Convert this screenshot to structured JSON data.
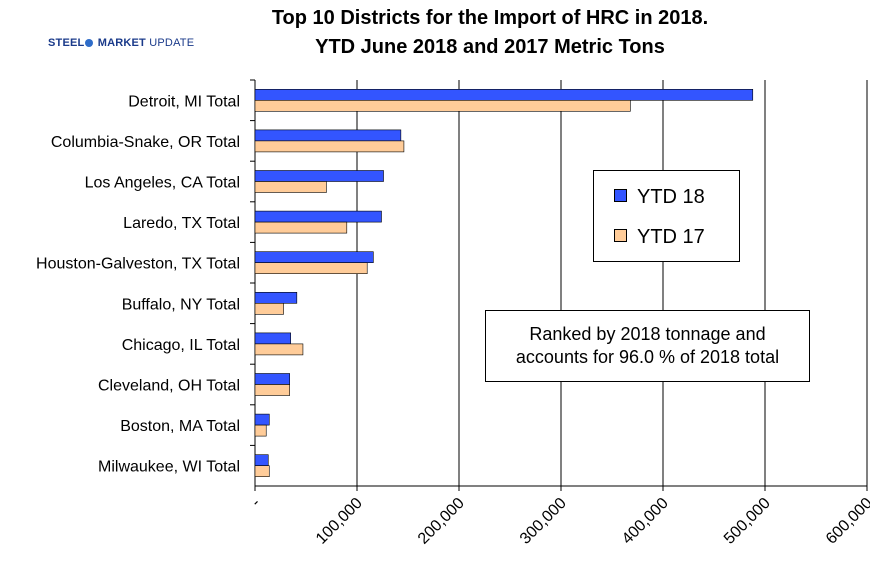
{
  "header": {
    "title_line1": "Top 10 Districts for the Import of HRC in 2018.",
    "title_line2": "YTD June 2018 and 2017 Metric Tons",
    "logo_text_a": "STEEL",
    "logo_text_b": "MARKET",
    "logo_text_c": "UPDATE"
  },
  "note": {
    "line1": "Ranked by 2018 tonnage and",
    "line2": "accounts for 96.0 % of 2018 total"
  },
  "chart_data": {
    "type": "bar",
    "orientation": "horizontal",
    "categories": [
      "Detroit, MI Total",
      "Columbia-Snake, OR Total",
      "Los Angeles, CA Total",
      "Laredo, TX Total",
      "Houston-Galveston, TX Total",
      "Buffalo, NY Total",
      "Chicago, IL Total",
      "Cleveland, OH Total",
      "Boston, MA Total",
      "Milwaukee, WI Total"
    ],
    "series": [
      {
        "name": "YTD 18",
        "color": "#3355ff",
        "values": [
          488000,
          143000,
          126000,
          124000,
          116000,
          41000,
          35000,
          34000,
          14000,
          13000
        ]
      },
      {
        "name": "YTD 17",
        "color": "#ffcc99",
        "values": [
          368000,
          146000,
          70000,
          90000,
          110000,
          28000,
          47000,
          34000,
          11000,
          14000
        ]
      }
    ],
    "x_ticks": [
      "-",
      "100,000",
      "200,000",
      "300,000",
      "400,000",
      "500,000",
      "600,000"
    ],
    "xlim": [
      0,
      600000
    ],
    "grid": true,
    "legend_position": "right"
  }
}
